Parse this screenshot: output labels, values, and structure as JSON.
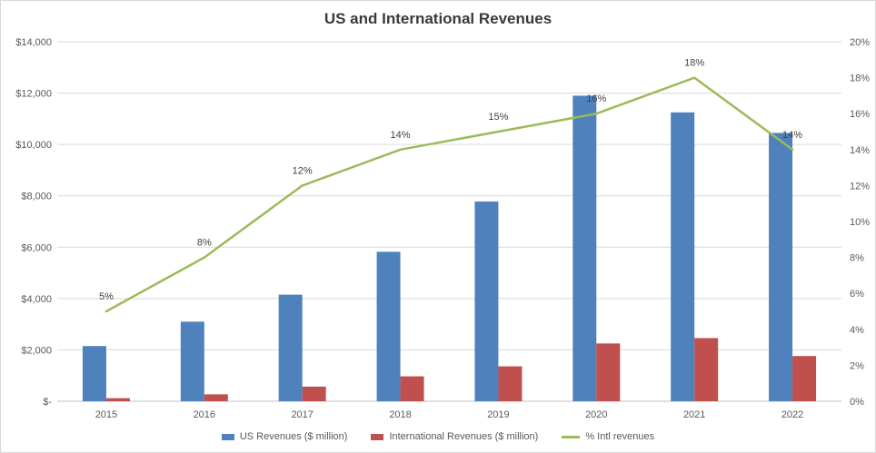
{
  "chart_data": {
    "type": "bar",
    "title": "US and International Revenues",
    "categories": [
      "2015",
      "2016",
      "2017",
      "2018",
      "2019",
      "2020",
      "2021",
      "2022"
    ],
    "series": [
      {
        "name": "US Revenues ($ million)",
        "type": "bar",
        "axis": "left",
        "color": "#4f81bd",
        "values": [
          2150,
          3100,
          4150,
          5820,
          7780,
          11900,
          11250,
          10450
        ]
      },
      {
        "name": "International Revenues ($ million)",
        "type": "bar",
        "axis": "left",
        "color": "#c0504d",
        "values": [
          120,
          270,
          570,
          970,
          1360,
          2250,
          2460,
          1760
        ]
      },
      {
        "name": "% Intl revenues",
        "type": "line",
        "axis": "right",
        "color": "#9bbb59",
        "values": [
          5,
          8,
          12,
          14,
          15,
          16,
          18,
          14
        ],
        "labels": [
          "5%",
          "8%",
          "12%",
          "14%",
          "15%",
          "16%",
          "18%",
          "14%"
        ]
      }
    ],
    "y_left": {
      "range": [
        0,
        14000
      ],
      "ticks": [
        0,
        2000,
        4000,
        6000,
        8000,
        10000,
        12000,
        14000
      ],
      "tick_labels": [
        "$-",
        "$2,000",
        "$4,000",
        "$6,000",
        "$8,000",
        "$10,000",
        "$12,000",
        "$14,000"
      ]
    },
    "y_right": {
      "range": [
        0,
        20
      ],
      "ticks": [
        0,
        2,
        4,
        6,
        8,
        10,
        12,
        14,
        16,
        18,
        20
      ],
      "tick_labels": [
        "0%",
        "2%",
        "4%",
        "6%",
        "8%",
        "10%",
        "12%",
        "14%",
        "16%",
        "18%",
        "20%"
      ]
    },
    "grid": true,
    "legend_position": "bottom"
  }
}
